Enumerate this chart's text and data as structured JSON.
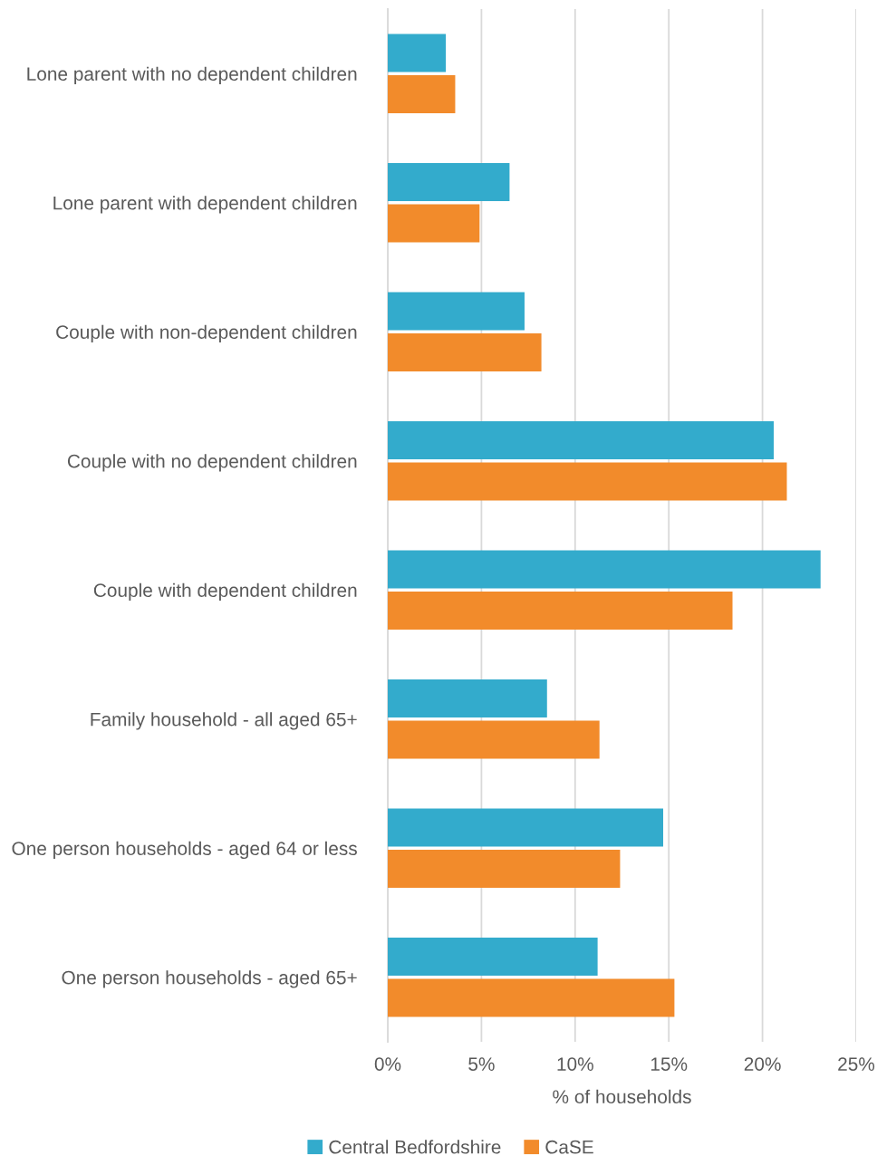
{
  "chart_data": {
    "type": "bar",
    "orientation": "horizontal",
    "categories": [
      "Lone parent with no dependent children",
      "Lone parent with dependent children",
      "Couple with non-dependent children",
      "Couple with no dependent children",
      "Couple with dependent children",
      "Family household - all aged 65+",
      "One person households - aged 64 or less",
      "One person households - aged 65+"
    ],
    "series": [
      {
        "name": "Central Bedfordshire",
        "color": "#33abcc",
        "values": [
          3.1,
          6.5,
          7.3,
          20.6,
          23.1,
          8.5,
          14.7,
          11.2
        ]
      },
      {
        "name": "CaSE",
        "color": "#f28b2b",
        "values": [
          3.6,
          4.9,
          8.2,
          21.3,
          18.4,
          11.3,
          12.4,
          15.3
        ]
      }
    ],
    "xlim": [
      0,
      25
    ],
    "xticks": [
      {
        "value": 0,
        "label": "0%"
      },
      {
        "value": 5,
        "label": "5%"
      },
      {
        "value": 10,
        "label": "10%"
      },
      {
        "value": 15,
        "label": "15%"
      },
      {
        "value": 20,
        "label": "20%"
      },
      {
        "value": 25,
        "label": "25%"
      }
    ],
    "xlabel": "% of households",
    "grid": "x",
    "legend": "bottom"
  }
}
